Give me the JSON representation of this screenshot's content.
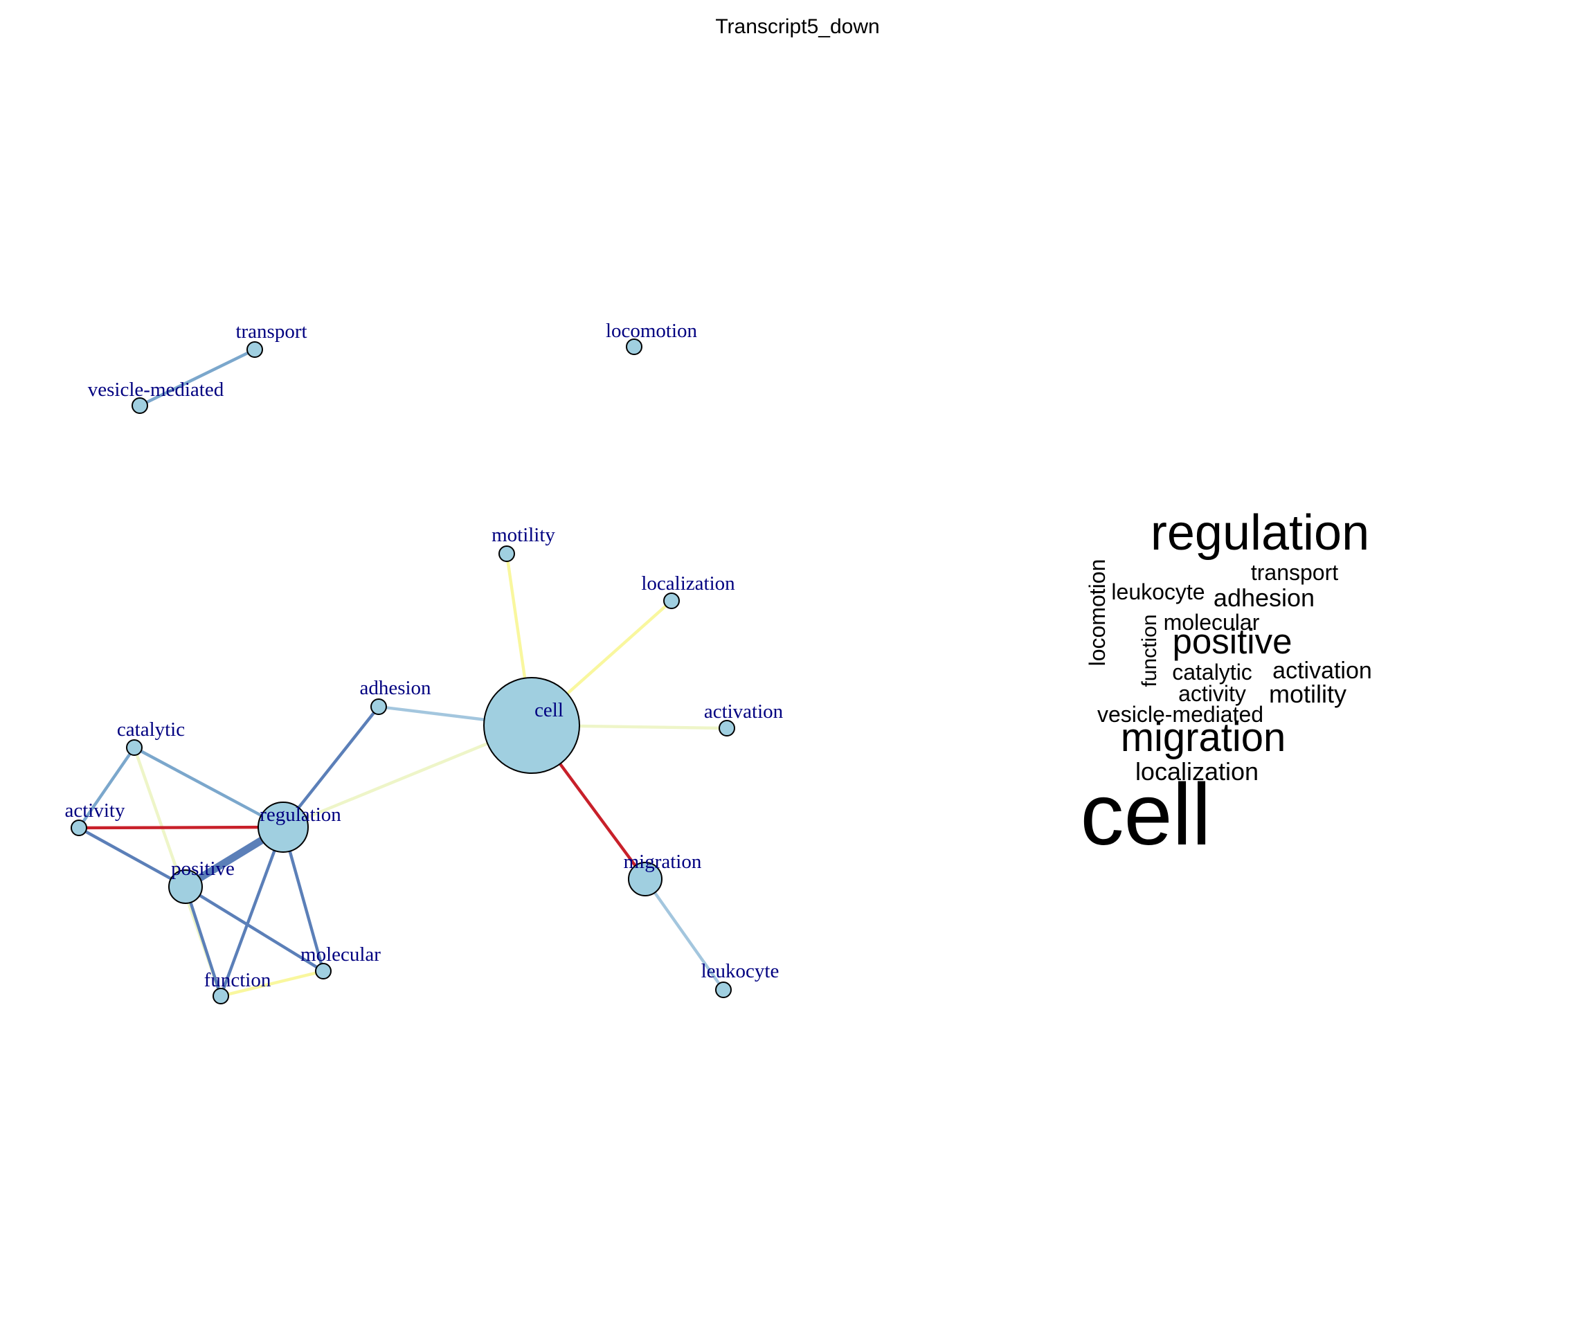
{
  "title": "Transcript5_down",
  "colors": {
    "node_fill": "#a0cfe0",
    "label": "#000080",
    "edge_red": "#c8202a",
    "edge_blue_dark": "#5b7fb8",
    "edge_blue": "#7ba7cc",
    "edge_blue_light": "#a3c6de",
    "edge_yellow": "#f9f79e",
    "edge_yellow_green": "#eef5c8"
  },
  "network": {
    "nodes": [
      {
        "id": "transport",
        "label": "transport",
        "size": "small"
      },
      {
        "id": "vesicle-mediated",
        "label": "vesicle-mediated",
        "size": "small"
      },
      {
        "id": "locomotion",
        "label": "locomotion",
        "size": "small"
      },
      {
        "id": "motility",
        "label": "motility",
        "size": "small"
      },
      {
        "id": "localization",
        "label": "localization",
        "size": "small"
      },
      {
        "id": "adhesion",
        "label": "adhesion",
        "size": "small"
      },
      {
        "id": "cell",
        "label": "cell",
        "size": "xlarge"
      },
      {
        "id": "activation",
        "label": "activation",
        "size": "small"
      },
      {
        "id": "catalytic",
        "label": "catalytic",
        "size": "small"
      },
      {
        "id": "activity",
        "label": "activity",
        "size": "small"
      },
      {
        "id": "regulation",
        "label": "regulation",
        "size": "large"
      },
      {
        "id": "positive",
        "label": "positive",
        "size": "medium"
      },
      {
        "id": "migration",
        "label": "migration",
        "size": "medium"
      },
      {
        "id": "molecular",
        "label": "molecular",
        "size": "small"
      },
      {
        "id": "function",
        "label": "function",
        "size": "small"
      },
      {
        "id": "leukocyte",
        "label": "leukocyte",
        "size": "small"
      }
    ],
    "edges": [
      {
        "source": "vesicle-mediated",
        "target": "transport",
        "color": "edge_blue",
        "weight": 2
      },
      {
        "source": "cell",
        "target": "motility",
        "color": "edge_yellow",
        "weight": 2
      },
      {
        "source": "cell",
        "target": "localization",
        "color": "edge_yellow",
        "weight": 2
      },
      {
        "source": "cell",
        "target": "activation",
        "color": "edge_yellow_green",
        "weight": 2
      },
      {
        "source": "cell",
        "target": "adhesion",
        "color": "edge_blue_light",
        "weight": 2
      },
      {
        "source": "cell",
        "target": "regulation",
        "color": "edge_yellow_green",
        "weight": 2
      },
      {
        "source": "cell",
        "target": "migration",
        "color": "edge_red",
        "weight": 2
      },
      {
        "source": "migration",
        "target": "leukocyte",
        "color": "edge_blue_light",
        "weight": 2
      },
      {
        "source": "adhesion",
        "target": "regulation",
        "color": "edge_blue_dark",
        "weight": 2
      },
      {
        "source": "catalytic",
        "target": "regulation",
        "color": "edge_blue",
        "weight": 2
      },
      {
        "source": "catalytic",
        "target": "activity",
        "color": "edge_blue",
        "weight": 2
      },
      {
        "source": "catalytic",
        "target": "function",
        "color": "edge_yellow_green",
        "weight": 2
      },
      {
        "source": "activity",
        "target": "regulation",
        "color": "edge_red",
        "weight": 2
      },
      {
        "source": "activity",
        "target": "positive",
        "color": "edge_blue_dark",
        "weight": 2
      },
      {
        "source": "regulation",
        "target": "positive",
        "color": "edge_blue_dark",
        "weight": 5
      },
      {
        "source": "regulation",
        "target": "function",
        "color": "edge_blue_dark",
        "weight": 2
      },
      {
        "source": "regulation",
        "target": "molecular",
        "color": "edge_blue_dark",
        "weight": 2
      },
      {
        "source": "positive",
        "target": "molecular",
        "color": "edge_blue_dark",
        "weight": 2
      },
      {
        "source": "positive",
        "target": "function",
        "color": "edge_blue_dark",
        "weight": 2
      },
      {
        "source": "function",
        "target": "molecular",
        "color": "edge_yellow",
        "weight": 2
      }
    ]
  },
  "word_cloud": [
    {
      "text": "regulation",
      "weight": 5
    },
    {
      "text": "transport",
      "weight": 1
    },
    {
      "text": "locomotion",
      "weight": 1
    },
    {
      "text": "leukocyte",
      "weight": 1
    },
    {
      "text": "adhesion",
      "weight": 1.5
    },
    {
      "text": "molecular",
      "weight": 1
    },
    {
      "text": "function",
      "weight": 1
    },
    {
      "text": "positive",
      "weight": 3
    },
    {
      "text": "catalytic",
      "weight": 1
    },
    {
      "text": "activation",
      "weight": 1.5
    },
    {
      "text": "activity",
      "weight": 1
    },
    {
      "text": "motility",
      "weight": 1.5
    },
    {
      "text": "vesicle-mediated",
      "weight": 1
    },
    {
      "text": "migration",
      "weight": 4
    },
    {
      "text": "localization",
      "weight": 1.5
    },
    {
      "text": "cell",
      "weight": 10
    }
  ]
}
